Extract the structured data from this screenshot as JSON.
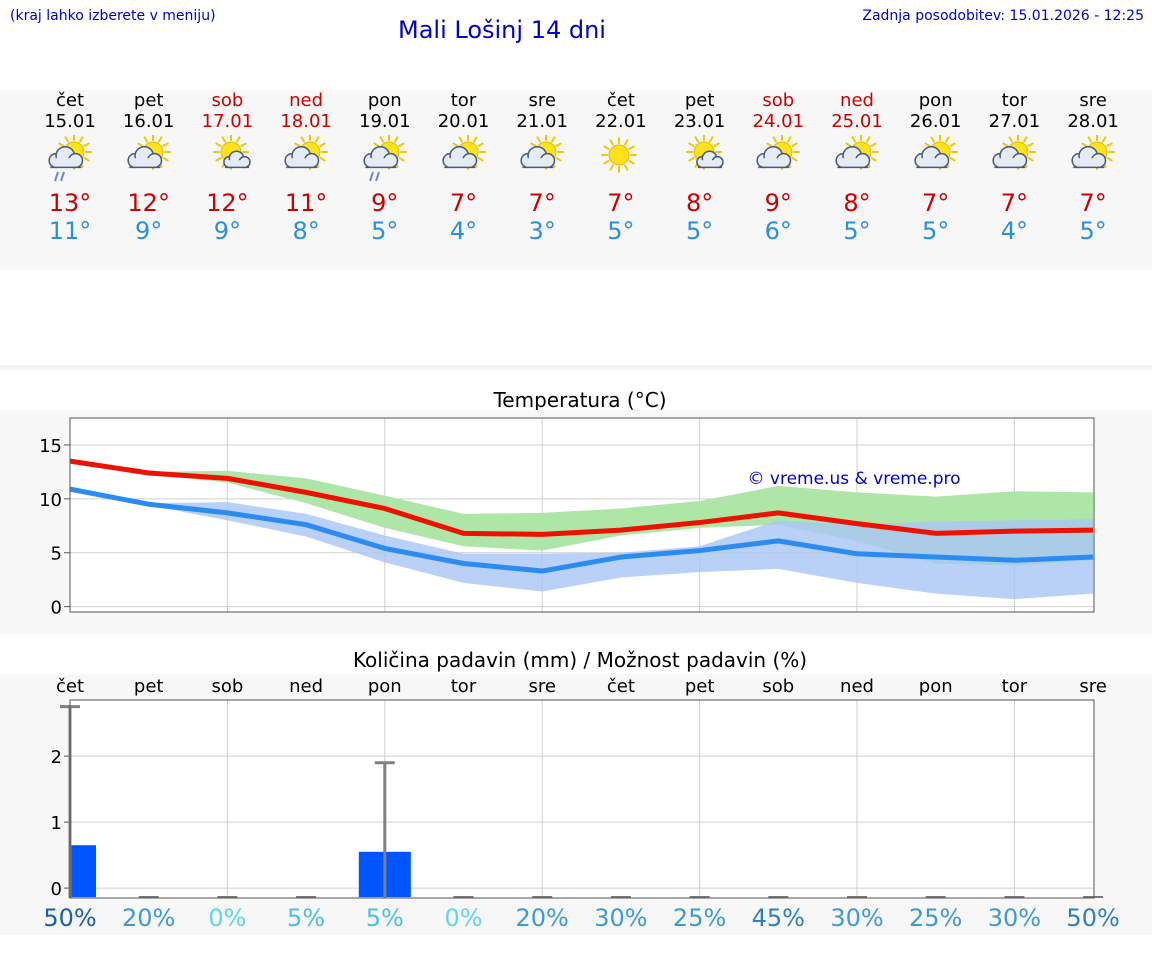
{
  "header": {
    "hint": "(kraj lahko izberete v meniju)",
    "title": "Mali Lošinj 14 dni",
    "updated": "Zadnja posodobitev: 15.01.2026 - 12:25"
  },
  "days": [
    {
      "name": "čet",
      "date": "15.01",
      "icon": "sun-cloud-rain-icon",
      "tmax": "13°",
      "tmin": "11°",
      "weekend": false
    },
    {
      "name": "pet",
      "date": "16.01",
      "icon": "sun-cloud-icon",
      "tmax": "12°",
      "tmin": "9°",
      "weekend": false
    },
    {
      "name": "sob",
      "date": "17.01",
      "icon": "sun-small-cloud-icon",
      "tmax": "12°",
      "tmin": "9°",
      "weekend": true
    },
    {
      "name": "ned",
      "date": "18.01",
      "icon": "sun-cloud-icon",
      "tmax": "11°",
      "tmin": "8°",
      "weekend": true
    },
    {
      "name": "pon",
      "date": "19.01",
      "icon": "sun-cloud-rain-icon",
      "tmax": "9°",
      "tmin": "5°",
      "weekend": false
    },
    {
      "name": "tor",
      "date": "20.01",
      "icon": "sun-cloud-icon",
      "tmax": "7°",
      "tmin": "4°",
      "weekend": false
    },
    {
      "name": "sre",
      "date": "21.01",
      "icon": "sun-cloud-icon",
      "tmax": "7°",
      "tmin": "3°",
      "weekend": false
    },
    {
      "name": "čet",
      "date": "22.01",
      "icon": "sun-icon",
      "tmax": "7°",
      "tmin": "5°",
      "weekend": false
    },
    {
      "name": "pet",
      "date": "23.01",
      "icon": "sun-small-cloud-icon",
      "tmax": "8°",
      "tmin": "5°",
      "weekend": false
    },
    {
      "name": "sob",
      "date": "24.01",
      "icon": "sun-cloud-icon",
      "tmax": "9°",
      "tmin": "6°",
      "weekend": true
    },
    {
      "name": "ned",
      "date": "25.01",
      "icon": "sun-cloud-icon",
      "tmax": "8°",
      "tmin": "5°",
      "weekend": true
    },
    {
      "name": "pon",
      "date": "26.01",
      "icon": "sun-cloud-icon",
      "tmax": "7°",
      "tmin": "5°",
      "weekend": false
    },
    {
      "name": "tor",
      "date": "27.01",
      "icon": "sun-cloud-icon",
      "tmax": "7°",
      "tmin": "4°",
      "weekend": false
    },
    {
      "name": "sre",
      "date": "28.01",
      "icon": "sun-cloud-icon",
      "tmax": "7°",
      "tmin": "5°",
      "weekend": false
    }
  ],
  "colors": {
    "max_line": "#ee1100",
    "min_line": "#2a8cf0",
    "max_band": "#aee6a8",
    "min_band": "#a9c6f5",
    "overlap_band": "#86c4a4",
    "bar": "#0055ff",
    "error_bar": "#808080",
    "weekend_text": "#cc0000",
    "title_text": "#0000cc"
  },
  "chart_data": [
    {
      "type": "line",
      "title": "Temperatura (°C)",
      "watermark": "© vreme.us & vreme.pro",
      "xlabel": "",
      "ylabel": "",
      "ylim": [
        -0.5,
        17.5
      ],
      "yticks": [
        0,
        5,
        10,
        15
      ],
      "grid": true,
      "x": [
        "15.01",
        "16.01",
        "17.01",
        "18.01",
        "19.01",
        "20.01",
        "21.01",
        "22.01",
        "23.01",
        "24.01",
        "25.01",
        "26.01",
        "27.01",
        "28.01"
      ],
      "series": [
        {
          "name": "max",
          "values": [
            13.5,
            12.4,
            11.9,
            10.6,
            9.1,
            6.8,
            6.7,
            7.1,
            7.8,
            8.7,
            7.7,
            6.8,
            7.0,
            7.1
          ]
        },
        {
          "name": "min",
          "values": [
            10.9,
            9.5,
            8.7,
            7.6,
            5.4,
            4.0,
            3.3,
            4.6,
            5.2,
            6.1,
            4.9,
            4.6,
            4.3,
            4.6
          ]
        },
        {
          "name": "max_range_upper",
          "values": [
            13.5,
            12.5,
            12.6,
            11.9,
            10.3,
            8.6,
            8.7,
            9.1,
            9.8,
            11.2,
            10.6,
            10.2,
            10.7,
            10.6
          ]
        },
        {
          "name": "max_range_lower",
          "values": [
            13.5,
            12.3,
            11.5,
            9.6,
            7.3,
            5.6,
            5.2,
            6.6,
            7.3,
            7.6,
            6.1,
            4.0,
            3.8,
            4.3
          ]
        },
        {
          "name": "min_range_upper",
          "values": [
            10.9,
            9.6,
            9.7,
            8.6,
            6.6,
            4.9,
            4.9,
            5.0,
            5.6,
            8.0,
            7.6,
            7.9,
            8.0,
            8.1
          ]
        },
        {
          "name": "min_range_lower",
          "values": [
            10.9,
            9.4,
            8.0,
            6.5,
            4.1,
            2.2,
            1.4,
            2.7,
            3.2,
            3.5,
            2.2,
            1.2,
            0.7,
            1.2
          ]
        }
      ]
    },
    {
      "type": "bar",
      "title": "Količina padavin (mm) / Možnost padavin (%)",
      "xlabel": "",
      "ylabel": "",
      "ylim": [
        -0.15,
        2.85
      ],
      "yticks": [
        0,
        1,
        2
      ],
      "grid": true,
      "categories": [
        "čet",
        "pet",
        "sob",
        "ned",
        "pon",
        "tor",
        "sre",
        "čet",
        "pet",
        "sob",
        "ned",
        "pon",
        "tor",
        "sre"
      ],
      "values": [
        0.65,
        0,
        0,
        0,
        0.55,
        0,
        0,
        0,
        0,
        0,
        0,
        0,
        0,
        0
      ],
      "error_max": [
        2.75,
        0,
        0,
        0,
        1.9,
        0,
        0,
        0,
        0,
        0,
        0,
        0,
        0,
        0
      ],
      "probability": [
        "50%",
        "20%",
        "0%",
        "5%",
        "5%",
        "0%",
        "20%",
        "30%",
        "25%",
        "45%",
        "30%",
        "25%",
        "30%",
        "50%"
      ],
      "probability_colors": [
        "#1a5fa8",
        "#3d9ad6",
        "#5fd5ea",
        "#4cbfe2",
        "#4cbfe2",
        "#5fd5ea",
        "#3d9ad6",
        "#3d9ad6",
        "#3d9ad6",
        "#2e7fc2",
        "#3d9ad6",
        "#3d9ad6",
        "#3d9ad6",
        "#2e7fc2"
      ]
    }
  ]
}
